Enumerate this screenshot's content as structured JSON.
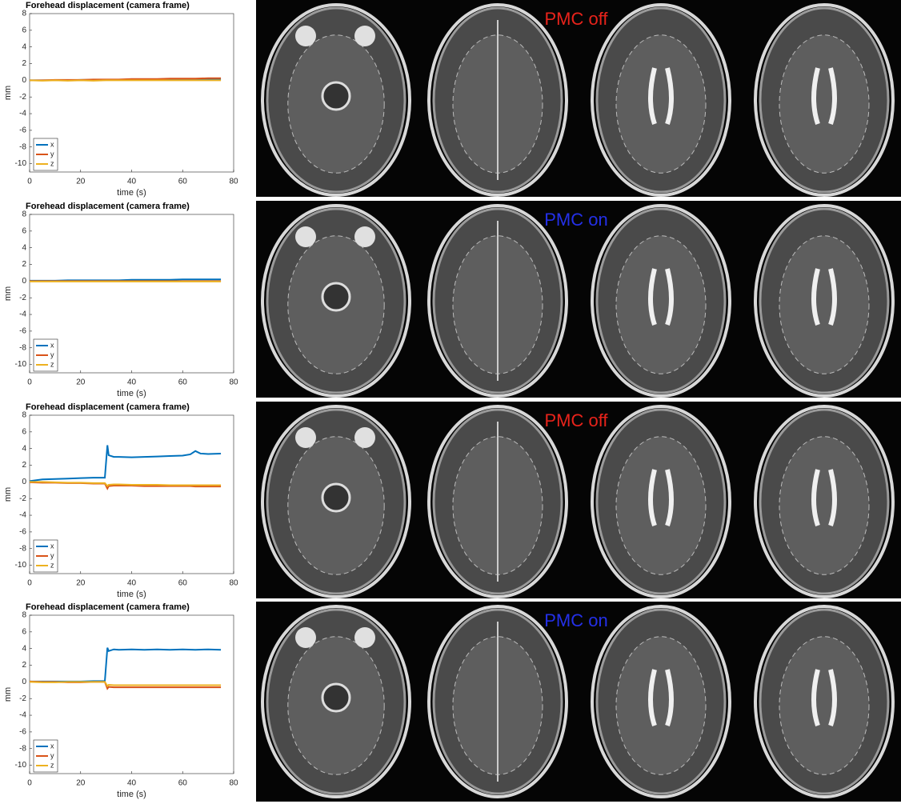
{
  "chart_data": [
    {
      "type": "line",
      "title": "Forehead displacement (camera frame)",
      "ylabel": "mm",
      "xlabel": "time (s)",
      "xlim": [
        0,
        80
      ],
      "ylim": [
        -11,
        8
      ],
      "xticks": [
        0,
        20,
        40,
        60,
        80
      ],
      "yticks": [
        8,
        6,
        4,
        2,
        0,
        -2,
        -4,
        -6,
        -8,
        -10
      ],
      "grid": false,
      "legend": "lower left",
      "annotation": "PMC off",
      "annotation_color": "#e8231b",
      "x": [
        0,
        5,
        10,
        15,
        20,
        25,
        30,
        35,
        40,
        45,
        50,
        55,
        60,
        65,
        70,
        75
      ],
      "series": [
        {
          "name": "x",
          "color": "#0072bd",
          "values": [
            0,
            0,
            0,
            0,
            0.05,
            0.05,
            0.05,
            0.05,
            0.1,
            0.1,
            0.1,
            0.1,
            0.1,
            0.1,
            0.1,
            0.1
          ]
        },
        {
          "name": "y",
          "color": "#d95319",
          "values": [
            0,
            0,
            0.05,
            0.05,
            0.05,
            0.1,
            0.1,
            0.1,
            0.15,
            0.15,
            0.15,
            0.2,
            0.2,
            0.2,
            0.25,
            0.25
          ]
        },
        {
          "name": "z",
          "color": "#edb120",
          "values": [
            0,
            -0.05,
            0,
            -0.05,
            0,
            -0.05,
            0,
            0,
            0,
            0,
            0,
            0,
            0,
            0,
            0,
            0
          ]
        }
      ]
    },
    {
      "type": "line",
      "title": "Forehead displacement (camera frame)",
      "ylabel": "mm",
      "xlabel": "time (s)",
      "xlim": [
        0,
        80
      ],
      "ylim": [
        -11,
        8
      ],
      "xticks": [
        0,
        20,
        40,
        60,
        80
      ],
      "yticks": [
        8,
        6,
        4,
        2,
        0,
        -2,
        -4,
        -6,
        -8,
        -10
      ],
      "grid": false,
      "legend": "lower left",
      "annotation": "PMC on",
      "annotation_color": "#2430e8",
      "x": [
        0,
        5,
        10,
        15,
        20,
        25,
        30,
        35,
        40,
        45,
        50,
        55,
        60,
        65,
        70,
        75
      ],
      "series": [
        {
          "name": "x",
          "color": "#0072bd",
          "values": [
            0.05,
            0.05,
            0.05,
            0.1,
            0.1,
            0.1,
            0.1,
            0.1,
            0.15,
            0.15,
            0.15,
            0.15,
            0.2,
            0.2,
            0.2,
            0.2
          ]
        },
        {
          "name": "y",
          "color": "#d95319",
          "values": [
            0,
            0,
            0,
            0,
            0,
            0,
            0,
            0,
            0,
            0,
            0,
            0,
            0,
            0,
            0,
            0
          ]
        },
        {
          "name": "z",
          "color": "#edb120",
          "values": [
            -0.05,
            -0.05,
            -0.05,
            -0.05,
            -0.05,
            -0.05,
            -0.05,
            -0.05,
            -0.05,
            -0.05,
            -0.05,
            -0.05,
            -0.05,
            -0.05,
            -0.05,
            -0.05
          ]
        }
      ]
    },
    {
      "type": "line",
      "title": "Forehead displacement (camera frame)",
      "ylabel": "mm",
      "xlabel": "time (s)",
      "xlim": [
        0,
        80
      ],
      "ylim": [
        -11,
        8
      ],
      "xticks": [
        0,
        20,
        40,
        60,
        80
      ],
      "yticks": [
        8,
        6,
        4,
        2,
        0,
        -2,
        -4,
        -6,
        -8,
        -10
      ],
      "grid": false,
      "legend": "lower left",
      "annotation": "PMC off",
      "annotation_color": "#e8231b",
      "x": [
        0,
        5,
        10,
        15,
        20,
        25,
        29.5,
        30.5,
        31,
        33,
        35,
        40,
        45,
        50,
        55,
        60,
        63,
        65,
        67,
        70,
        75
      ],
      "series": [
        {
          "name": "x",
          "color": "#0072bd",
          "values": [
            0.1,
            0.3,
            0.35,
            0.4,
            0.45,
            0.5,
            0.5,
            4.4,
            3.2,
            3.0,
            3.0,
            2.95,
            3.0,
            3.05,
            3.1,
            3.15,
            3.3,
            3.7,
            3.4,
            3.35,
            3.4
          ]
        },
        {
          "name": "y",
          "color": "#d95319",
          "values": [
            -0.05,
            -0.1,
            -0.1,
            -0.15,
            -0.15,
            -0.2,
            -0.2,
            -0.8,
            -0.5,
            -0.45,
            -0.45,
            -0.45,
            -0.5,
            -0.5,
            -0.5,
            -0.5,
            -0.5,
            -0.55,
            -0.55,
            -0.55,
            -0.55
          ]
        },
        {
          "name": "z",
          "color": "#edb120",
          "values": [
            0,
            0,
            -0.05,
            -0.1,
            -0.1,
            -0.15,
            -0.15,
            -0.5,
            -0.35,
            -0.3,
            -0.3,
            -0.35,
            -0.35,
            -0.35,
            -0.4,
            -0.4,
            -0.4,
            -0.4,
            -0.4,
            -0.4,
            -0.4
          ]
        }
      ]
    },
    {
      "type": "line",
      "title": "Forehead displacement (camera frame)",
      "ylabel": "mm",
      "xlabel": "time (s)",
      "xlim": [
        0,
        80
      ],
      "ylim": [
        -11,
        8
      ],
      "xticks": [
        0,
        20,
        40,
        60,
        80
      ],
      "yticks": [
        8,
        6,
        4,
        2,
        0,
        -2,
        -4,
        -6,
        -8,
        -10
      ],
      "grid": false,
      "legend": "lower left",
      "annotation": "PMC on",
      "annotation_color": "#2430e8",
      "x": [
        0,
        5,
        10,
        15,
        20,
        25,
        29.5,
        30.5,
        31,
        33,
        35,
        40,
        45,
        50,
        55,
        60,
        65,
        70,
        75
      ],
      "series": [
        {
          "name": "x",
          "color": "#0072bd",
          "values": [
            0.05,
            0.05,
            0.05,
            0.05,
            0.05,
            0.1,
            0.1,
            4.1,
            3.7,
            3.9,
            3.85,
            3.9,
            3.85,
            3.9,
            3.85,
            3.9,
            3.85,
            3.9,
            3.85
          ]
        },
        {
          "name": "y",
          "color": "#d95319",
          "values": [
            0.05,
            0,
            0,
            -0.05,
            -0.05,
            0,
            0,
            -0.8,
            -0.6,
            -0.65,
            -0.65,
            -0.65,
            -0.65,
            -0.65,
            -0.65,
            -0.65,
            -0.65,
            -0.65,
            -0.65
          ]
        },
        {
          "name": "z",
          "color": "#edb120",
          "values": [
            0,
            -0.05,
            -0.05,
            0,
            0,
            0,
            0,
            -0.5,
            -0.35,
            -0.4,
            -0.4,
            -0.4,
            -0.4,
            -0.4,
            -0.4,
            -0.4,
            -0.4,
            -0.4,
            -0.4
          ]
        }
      ]
    }
  ]
}
